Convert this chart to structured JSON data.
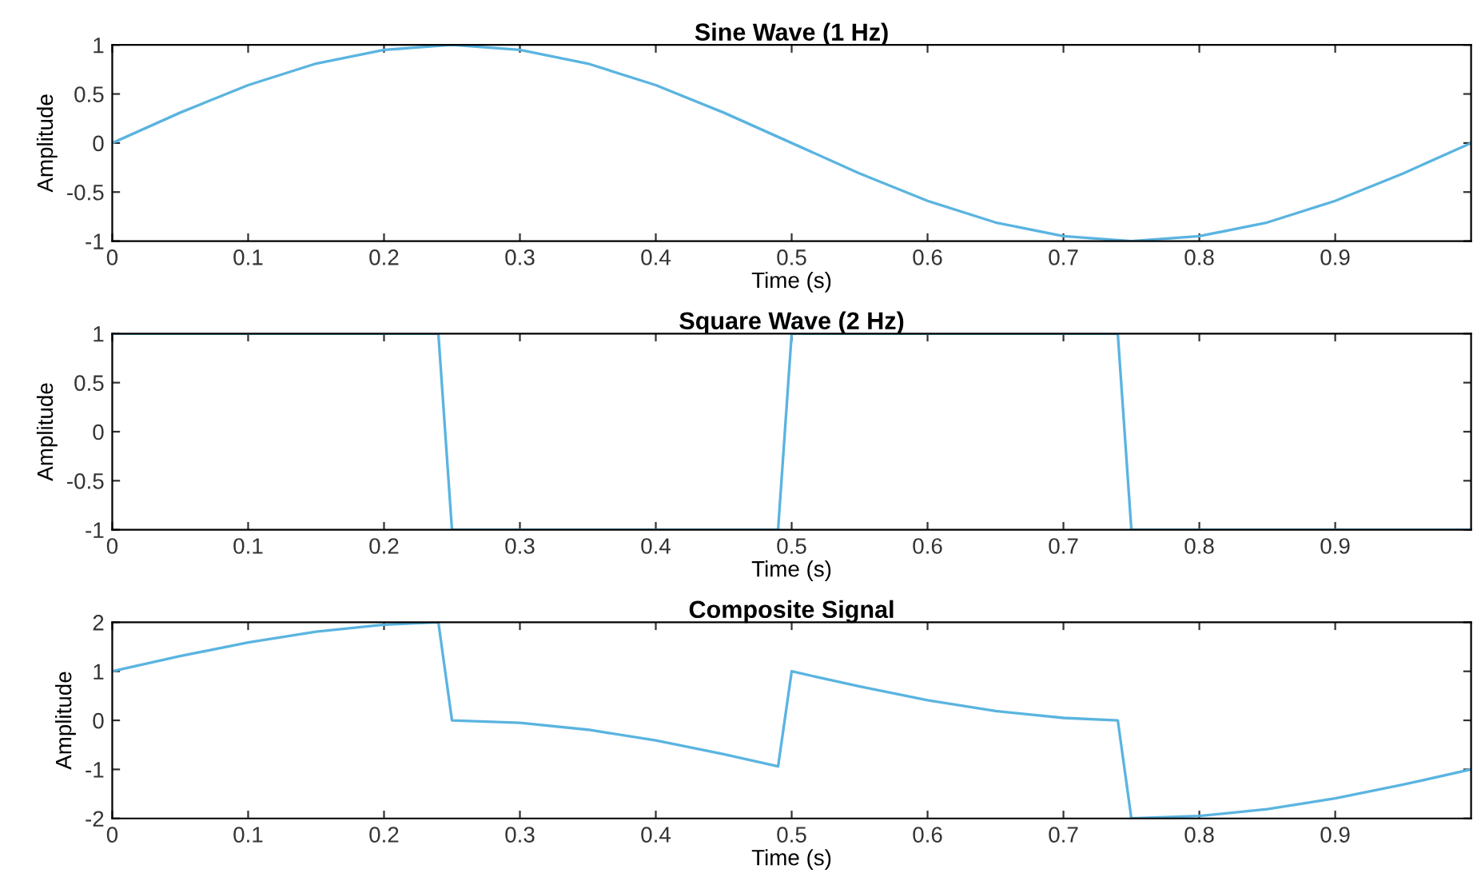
{
  "chart_data": [
    {
      "type": "line",
      "title": "Sine Wave (1 Hz)",
      "xlabel": "Time (s)",
      "ylabel": "Amplitude",
      "xlim": [
        0,
        1
      ],
      "xticks": [
        0,
        0.1,
        0.2,
        0.3,
        0.4,
        0.5,
        0.6,
        0.7,
        0.8,
        0.9
      ],
      "ylim": [
        -1,
        1
      ],
      "yticks": [
        -1,
        -0.5,
        0,
        0.5,
        1
      ],
      "grid": false,
      "legend": false,
      "series": [
        {
          "color": "#5ab4e0",
          "x": [
            0,
            0.05,
            0.1,
            0.15,
            0.2,
            0.25,
            0.3,
            0.35,
            0.4,
            0.45,
            0.5,
            0.55,
            0.6,
            0.65,
            0.7,
            0.75,
            0.8,
            0.85,
            0.9,
            0.95,
            1
          ],
          "values": [
            0,
            0.31,
            0.59,
            0.81,
            0.95,
            1,
            0.95,
            0.81,
            0.59,
            0.31,
            0,
            -0.31,
            -0.59,
            -0.81,
            -0.95,
            -1,
            -0.95,
            -0.81,
            -0.59,
            -0.31,
            0
          ]
        }
      ]
    },
    {
      "type": "line",
      "title": "Square Wave (2 Hz)",
      "xlabel": "Time (s)",
      "ylabel": "Amplitude",
      "xlim": [
        0,
        1
      ],
      "xticks": [
        0,
        0.1,
        0.2,
        0.3,
        0.4,
        0.5,
        0.6,
        0.7,
        0.8,
        0.9
      ],
      "ylim": [
        -1,
        1
      ],
      "yticks": [
        -1,
        -0.5,
        0,
        0.5,
        1
      ],
      "grid": false,
      "legend": false,
      "series": [
        {
          "color": "#5ab4e0",
          "x": [
            0,
            0.24,
            0.25,
            0.49,
            0.5,
            0.74,
            0.75,
            1
          ],
          "values": [
            1,
            1,
            -1,
            -1,
            1,
            1,
            -1,
            -1
          ]
        }
      ]
    },
    {
      "type": "line",
      "title": "Composite Signal",
      "xlabel": "Time (s)",
      "ylabel": "Amplitude",
      "xlim": [
        0,
        1
      ],
      "xticks": [
        0,
        0.1,
        0.2,
        0.3,
        0.4,
        0.5,
        0.6,
        0.7,
        0.8,
        0.9
      ],
      "ylim": [
        -2,
        2
      ],
      "yticks": [
        -2,
        -1,
        0,
        1,
        2
      ],
      "grid": false,
      "legend": false,
      "series": [
        {
          "color": "#5ab4e0",
          "x": [
            0,
            0.05,
            0.1,
            0.15,
            0.2,
            0.24,
            0.25,
            0.3,
            0.35,
            0.4,
            0.45,
            0.49,
            0.5,
            0.55,
            0.6,
            0.65,
            0.7,
            0.74,
            0.75,
            0.8,
            0.85,
            0.9,
            0.95,
            1
          ],
          "values": [
            1,
            1.31,
            1.59,
            1.81,
            1.95,
            2,
            0,
            -0.05,
            -0.19,
            -0.41,
            -0.69,
            -0.94,
            1,
            0.69,
            0.41,
            0.19,
            0.05,
            0,
            -2,
            -1.95,
            -1.81,
            -1.59,
            -1.31,
            -1
          ]
        }
      ]
    }
  ]
}
